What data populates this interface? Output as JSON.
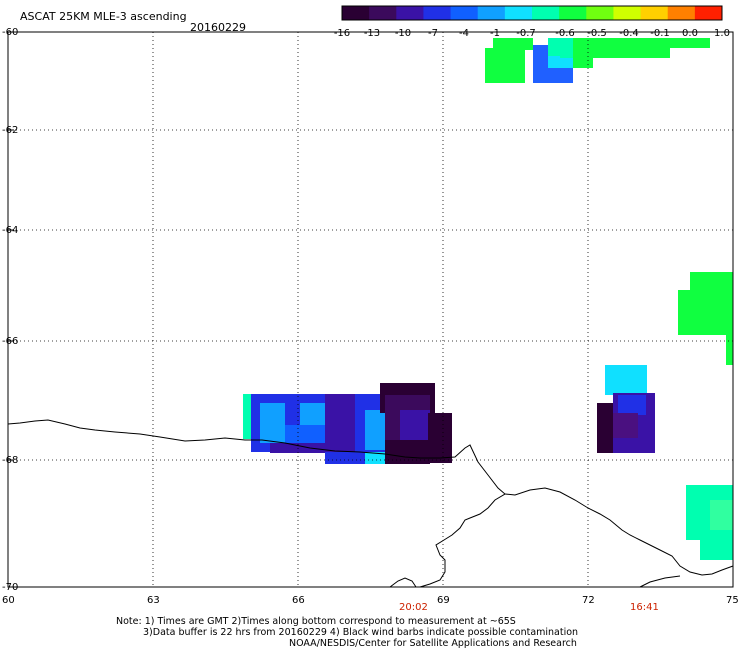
{
  "title": "ASCAT 25KM MLE-3 ascending",
  "date": "20160229",
  "colorbar": {
    "labels": [
      "-16",
      "-13",
      "-10",
      "-7",
      "-4",
      "-1",
      "-0.7",
      "-0.6",
      "-0.5",
      "-0.4",
      "-0.1",
      "0.0",
      "1.0"
    ],
    "colors": [
      "#2a0033",
      "#3b0a5c",
      "#3a12a6",
      "#2030e6",
      "#1060ff",
      "#10a0ff",
      "#10e0ff",
      "#00ffb0",
      "#10ff40",
      "#70ff10",
      "#d0ff00",
      "#ffd000",
      "#ff8000",
      "#ff2000"
    ]
  },
  "axes": {
    "x_ticks": [
      "60",
      "63",
      "66",
      "69",
      "72",
      "75"
    ],
    "y_ticks": [
      "-60",
      "-62",
      "-64",
      "-66",
      "-68",
      "-70"
    ]
  },
  "times": [
    "20:02",
    "16:41"
  ],
  "notes": [
    "Note: 1) Times are GMT 2)Times along bottom correspond to measurement at ~65S",
    "3)Data buffer is 22 hrs from 20160229 4) Black wind barbs indicate possible contamination",
    "NOAA/NESDIS/Center for Satellite Applications and Research"
  ],
  "colors": {
    "time_label": "#cc2200"
  }
}
